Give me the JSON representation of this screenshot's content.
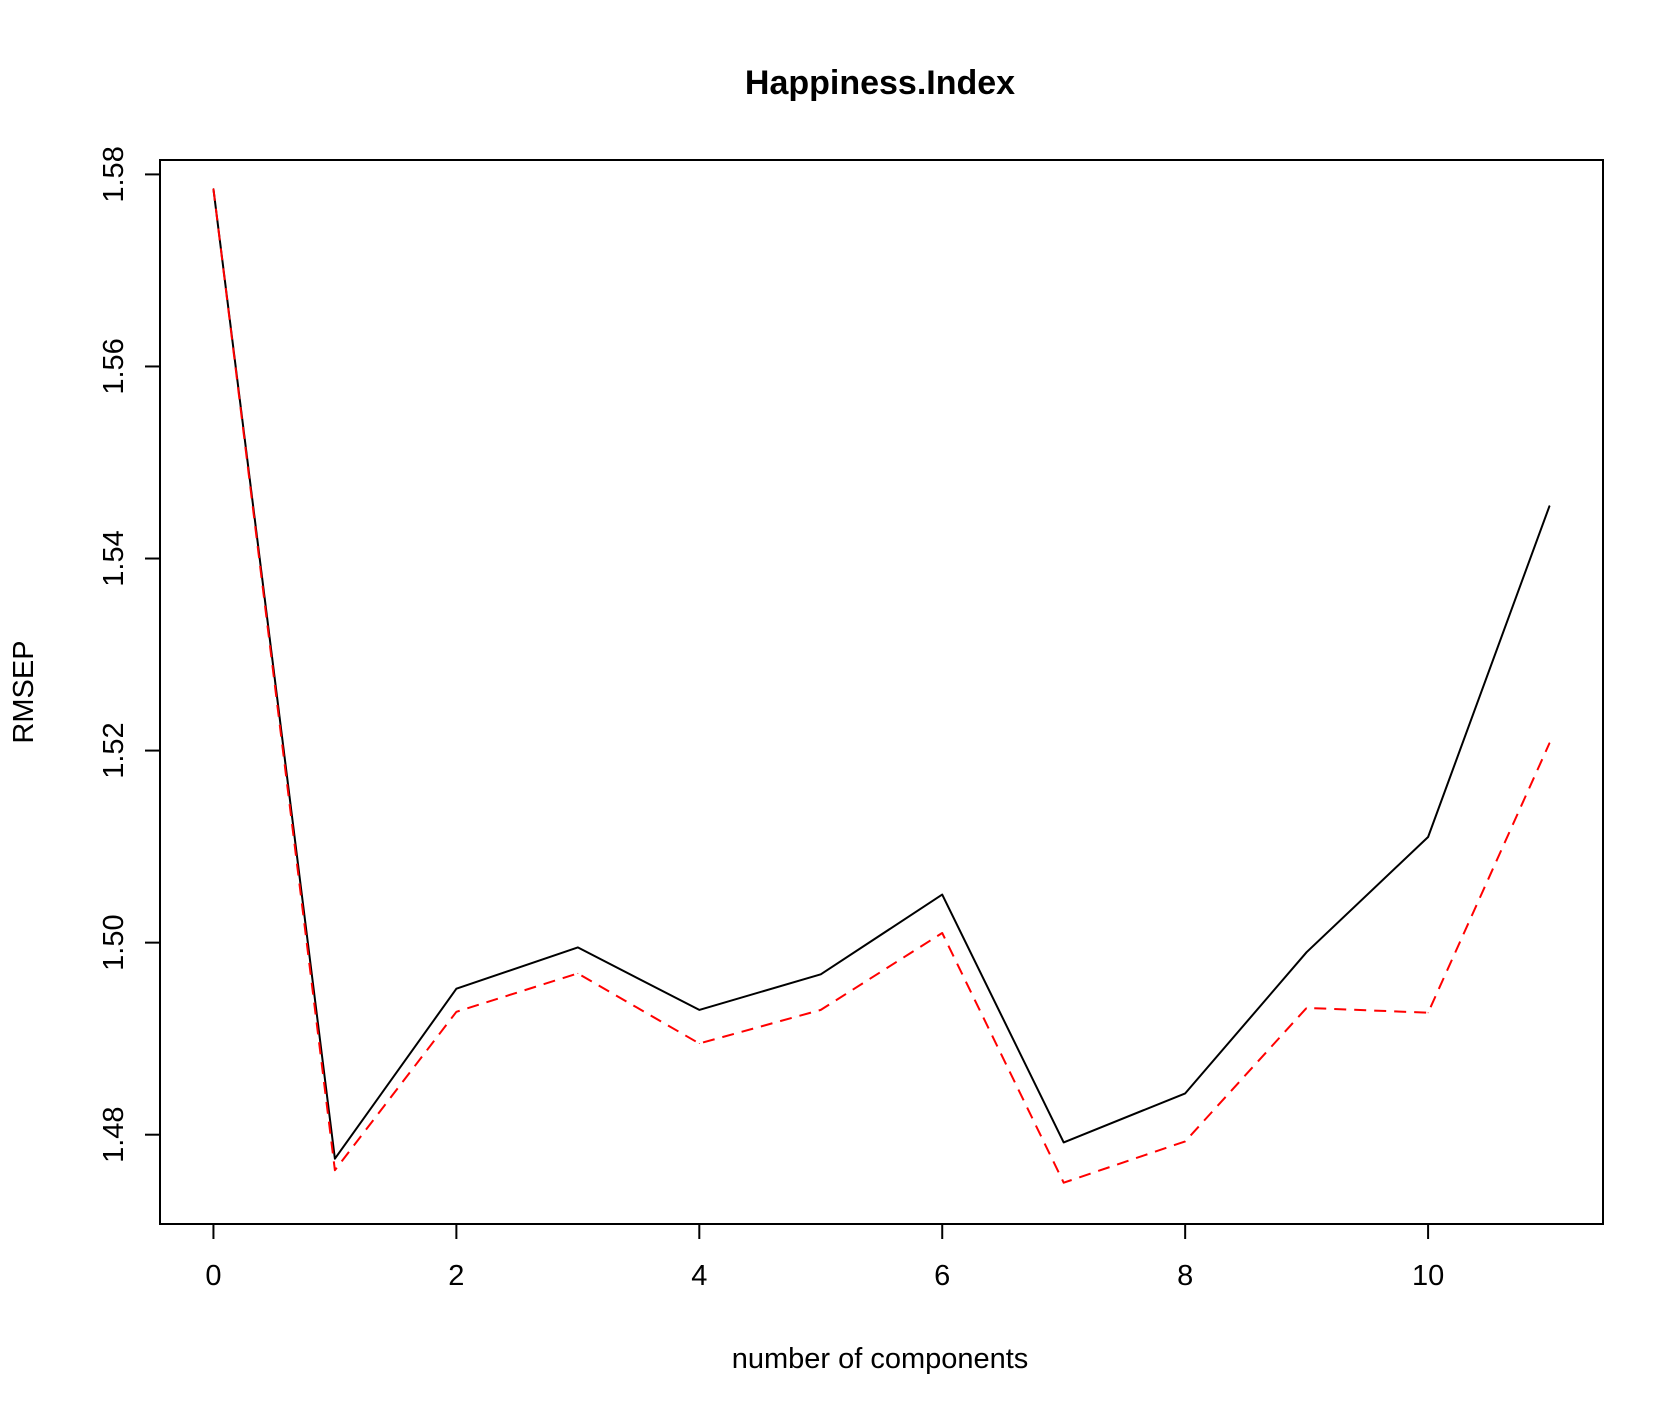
{
  "chart_data": {
    "type": "line",
    "title": "Happiness.Index",
    "xlabel": "number of components",
    "ylabel": "RMSEP",
    "x": [
      0,
      1,
      2,
      3,
      4,
      5,
      6,
      7,
      8,
      9,
      10,
      11
    ],
    "xticks": [
      0,
      2,
      4,
      6,
      8,
      10
    ],
    "xtick_labels": [
      "0",
      "2",
      "4",
      "6",
      "8",
      "10"
    ],
    "yticks": [
      1.48,
      1.5,
      1.52,
      1.54,
      1.56,
      1.58
    ],
    "ytick_labels": [
      "1.48",
      "1.50",
      "1.52",
      "1.54",
      "1.56",
      "1.58"
    ],
    "xlim": [
      -0.44,
      11.44
    ],
    "ylim": [
      1.4707,
      1.5815
    ],
    "grid": false,
    "legend": "none",
    "series": [
      {
        "style": "solid",
        "color": "#000000",
        "values": [
          1.5785,
          1.4775,
          1.4952,
          1.4995,
          1.493,
          1.4967,
          1.505,
          1.4792,
          1.4843,
          1.499,
          1.511,
          1.5455
        ]
      },
      {
        "style": "dashed",
        "color": "#ff0000",
        "values": [
          1.5785,
          1.4763,
          1.4928,
          1.4968,
          1.4895,
          1.493,
          1.501,
          1.475,
          1.4793,
          1.4932,
          1.4927,
          1.5208
        ]
      }
    ]
  }
}
